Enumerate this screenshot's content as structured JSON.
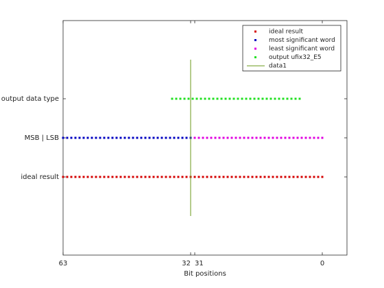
{
  "chart_data": {
    "type": "scatter",
    "xlabel": "Bit positions",
    "xlim": [
      -6,
      63
    ],
    "x_reversed": true,
    "xticks": [
      63,
      32,
      31,
      0
    ],
    "ylim": [
      -1,
      5
    ],
    "yticks": [
      {
        "value": 1,
        "label": "ideal result"
      },
      {
        "value": 2,
        "label": "MSB | LSB"
      },
      {
        "value": 3,
        "label": "output data type"
      }
    ],
    "legend": "northeast",
    "series": [
      {
        "name": "ideal result",
        "color": "#d40000",
        "y": 1,
        "x": [
          63,
          62,
          61,
          60,
          59,
          58,
          57,
          56,
          55,
          54,
          53,
          52,
          51,
          50,
          49,
          48,
          47,
          46,
          45,
          44,
          43,
          42,
          41,
          40,
          39,
          38,
          37,
          36,
          35,
          34,
          33,
          32,
          31,
          30,
          29,
          28,
          27,
          26,
          25,
          24,
          23,
          22,
          21,
          20,
          19,
          18,
          17,
          16,
          15,
          14,
          13,
          12,
          11,
          10,
          9,
          8,
          7,
          6,
          5,
          4,
          3,
          2,
          1,
          0
        ]
      },
      {
        "name": "most significant word",
        "color": "#0000c0",
        "y": 2,
        "x": [
          63,
          62,
          61,
          60,
          59,
          58,
          57,
          56,
          55,
          54,
          53,
          52,
          51,
          50,
          49,
          48,
          47,
          46,
          45,
          44,
          43,
          42,
          41,
          40,
          39,
          38,
          37,
          36,
          35,
          34,
          33,
          32
        ]
      },
      {
        "name": "least significant word",
        "color": "#e000e0",
        "y": 2,
        "x": [
          31,
          30,
          29,
          28,
          27,
          26,
          25,
          24,
          23,
          22,
          21,
          20,
          19,
          18,
          17,
          16,
          15,
          14,
          13,
          12,
          11,
          10,
          9,
          8,
          7,
          6,
          5,
          4,
          3,
          2,
          1,
          0
        ]
      },
      {
        "name": "output ufix32_E5",
        "color": "#20e020",
        "y": 3,
        "x": [
          36.5,
          35.5,
          34.5,
          33.5,
          32.5,
          31.5,
          30.5,
          29.5,
          28.5,
          27.5,
          26.5,
          25.5,
          24.5,
          23.5,
          22.5,
          21.5,
          20.5,
          19.5,
          18.5,
          17.5,
          16.5,
          15.5,
          14.5,
          13.5,
          12.5,
          11.5,
          10.5,
          9.5,
          8.5,
          7.5,
          6.5,
          5.5
        ]
      }
    ],
    "lines": [
      {
        "name": "data1",
        "color": "#6a9a1a",
        "x": [
          32,
          32
        ],
        "y": [
          0,
          4
        ]
      }
    ]
  }
}
